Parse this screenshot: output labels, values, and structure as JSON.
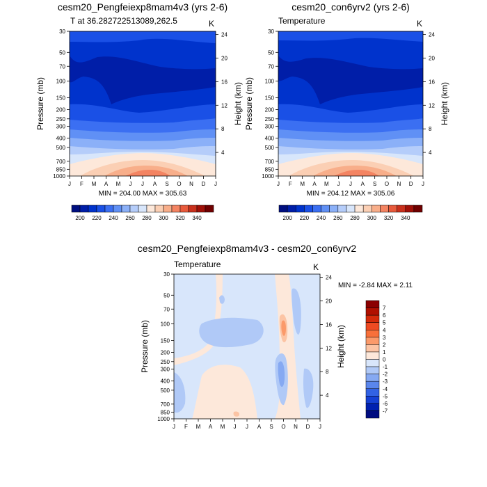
{
  "chart_data": [
    {
      "type": "contour",
      "title": "cesm20_Pengfeiexp8mam4v3 (yrs 2-6)",
      "subtitle_left": "T at 36.282722513089,262.5",
      "subtitle_right": "K",
      "xlabel": "",
      "ylabel": "Pressure (mb)",
      "ylabel_right": "Height (km)",
      "x_ticks": [
        "J",
        "F",
        "M",
        "A",
        "M",
        "J",
        "J",
        "A",
        "S",
        "O",
        "N",
        "D",
        "J"
      ],
      "y_ticks": [
        30,
        50,
        70,
        100,
        150,
        200,
        250,
        300,
        400,
        500,
        700,
        850,
        1000
      ],
      "y_ticks_right": [
        24,
        20,
        16,
        12,
        8,
        4
      ],
      "stats": "MIN = 204.00 MAX = 305.63",
      "colorbar": {
        "labels": [
          "200",
          "220",
          "240",
          "260",
          "280",
          "300",
          "320",
          "340"
        ],
        "colors": [
          "#000f80",
          "#001ea8",
          "#0033cc",
          "#1a50e6",
          "#3b6ff2",
          "#6090f5",
          "#8bb0f8",
          "#b5cdfa",
          "#d8e6fb",
          "#fde8da",
          "#fbcfb4",
          "#f8ae8a",
          "#f48462",
          "#e85a3c",
          "#c9301c",
          "#a01008",
          "#700000"
        ]
      }
    },
    {
      "type": "contour",
      "title": "cesm20_con6yrv2 (yrs 2-6)",
      "subtitle_left": "Temperature",
      "subtitle_right": "K",
      "xlabel": "",
      "ylabel": "Pressure (mb)",
      "ylabel_right": "Height (km)",
      "x_ticks": [
        "J",
        "F",
        "M",
        "A",
        "M",
        "J",
        "J",
        "A",
        "S",
        "O",
        "N",
        "D",
        "J"
      ],
      "y_ticks": [
        30,
        50,
        70,
        100,
        150,
        200,
        250,
        300,
        400,
        500,
        700,
        850,
        1000
      ],
      "y_ticks_right": [
        24,
        20,
        16,
        12,
        8,
        4
      ],
      "stats": "MIN = 204.12 MAX = 305.06",
      "colorbar": {
        "labels": [
          "200",
          "220",
          "240",
          "260",
          "280",
          "300",
          "320",
          "340"
        ],
        "colors": [
          "#000f80",
          "#001ea8",
          "#0033cc",
          "#1a50e6",
          "#3b6ff2",
          "#6090f5",
          "#8bb0f8",
          "#b5cdfa",
          "#d8e6fb",
          "#fde8da",
          "#fbcfb4",
          "#f8ae8a",
          "#f48462",
          "#e85a3c",
          "#c9301c",
          "#a01008",
          "#700000"
        ]
      }
    },
    {
      "type": "contour",
      "title": "cesm20_Pengfeiexp8mam4v3 - cesm20_con6yrv2",
      "subtitle_left": "Temperature",
      "subtitle_right": "K",
      "xlabel": "",
      "ylabel": "Pressure (mb)",
      "ylabel_right": "Height (km)",
      "x_ticks": [
        "J",
        "F",
        "M",
        "A",
        "M",
        "J",
        "J",
        "A",
        "S",
        "O",
        "N",
        "D",
        "J"
      ],
      "y_ticks": [
        30,
        50,
        70,
        100,
        150,
        200,
        250,
        300,
        400,
        500,
        700,
        850,
        1000
      ],
      "y_ticks_right": [
        24,
        20,
        16,
        12,
        8,
        4
      ],
      "stats": "MIN =  -2.84 MAX =   2.11",
      "colorbar": {
        "labels": [
          "7",
          "6",
          "5",
          "4",
          "3",
          "2",
          "1",
          "0",
          "-1",
          "-2",
          "-3",
          "-4",
          "-5",
          "-6",
          "-7"
        ],
        "colors": [
          "#8b0000",
          "#b01000",
          "#d42a0a",
          "#ee4a22",
          "#f8703a",
          "#fb9a6a",
          "#fcc4a4",
          "#fde8da",
          "#d8e6fb",
          "#b0c9f7",
          "#86a9f2",
          "#5a86ec",
          "#3262e4",
          "#1540d4",
          "#0020b0",
          "#000c80"
        ]
      }
    }
  ]
}
